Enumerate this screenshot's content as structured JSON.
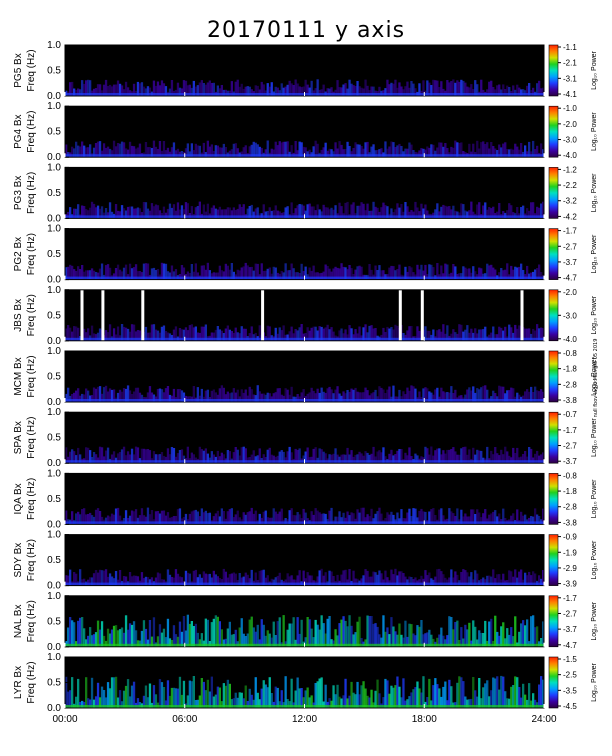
{
  "title": "20170111 y axis",
  "credit": "null fbov lag 0 Marrgfe 05 2019",
  "colorscale": [
    "#2b0040",
    "#3a00a0",
    "#1f3cff",
    "#00a0ff",
    "#00e0c0",
    "#20d020",
    "#d0e000",
    "#ff8000",
    "#ff2000"
  ],
  "chart_data": {
    "type": "heatmap",
    "x_tick_labels": [
      "00:00",
      "06:00",
      "12:00",
      "18:00",
      "24:00"
    ],
    "x_range_hours": [
      0,
      24
    ],
    "y_label_suffix": "Freq (Hz)",
    "y_range": [
      0,
      1.0
    ],
    "y_tick_labels": [
      "0.0",
      "0.5",
      "1.0"
    ],
    "colorbar_label": "Log₁₀ Power",
    "panels": [
      {
        "station": "PG5 Bx",
        "colorbar_ticks": [
          "-1.1",
          "-2.1",
          "-3.1",
          "-4.1"
        ],
        "gaps_hours": []
      },
      {
        "station": "PG4 Bx",
        "colorbar_ticks": [
          "-1.0",
          "-2.0",
          "-3.0",
          "-4.0"
        ],
        "gaps_hours": []
      },
      {
        "station": "PG3 Bx",
        "colorbar_ticks": [
          "-1.2",
          "-2.2",
          "-3.2",
          "-4.2"
        ],
        "gaps_hours": []
      },
      {
        "station": "PG2 Bx",
        "colorbar_ticks": [
          "-1.7",
          "-2.7",
          "-3.7",
          "-4.7"
        ],
        "gaps_hours": []
      },
      {
        "station": "JBS Bx",
        "colorbar_ticks": [
          "-2.0",
          "-3.0",
          "-4.0"
        ],
        "gaps_hours": [
          0.85,
          1.9,
          3.9,
          9.9,
          16.8,
          17.9,
          22.9
        ]
      },
      {
        "station": "MCM Bx",
        "colorbar_ticks": [
          "-0.8",
          "-1.8",
          "-2.8",
          "-3.8"
        ],
        "gaps_hours": []
      },
      {
        "station": "SPA Bx",
        "colorbar_ticks": [
          "-0.7",
          "-1.7",
          "-2.7",
          "-3.7"
        ],
        "gaps_hours": []
      },
      {
        "station": "IQA Bx",
        "colorbar_ticks": [
          "-0.8",
          "-1.8",
          "-2.8",
          "-3.8"
        ],
        "gaps_hours": []
      },
      {
        "station": "SDY Bx",
        "colorbar_ticks": [
          "-0.9",
          "-1.9",
          "-2.9",
          "-3.9"
        ],
        "gaps_hours": []
      },
      {
        "station": "NAL Bx",
        "colorbar_ticks": [
          "-1.7",
          "-2.7",
          "-3.7",
          "-4.7"
        ],
        "gaps_hours": []
      },
      {
        "station": "LYR Bx",
        "colorbar_ticks": [
          "-1.5",
          "-2.5",
          "-3.5",
          "-4.5"
        ],
        "gaps_hours": []
      }
    ]
  }
}
